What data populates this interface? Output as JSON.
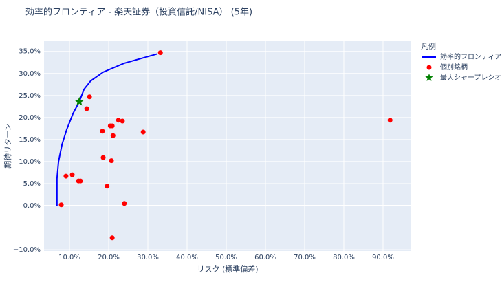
{
  "chart_data": {
    "type": "scatter",
    "title": "効率的フロンティア - 楽天証券（投資信託/NISA） (5年)",
    "x_label": "リスク (標準偏差)",
    "y_label": "期待リターン",
    "legend_title": "凡例",
    "legend": "right",
    "xlim": [
      0.035,
      0.972
    ],
    "ylim": [
      -0.103,
      0.373
    ],
    "xticks": [
      {
        "value": 0.1,
        "label": "10.0%"
      },
      {
        "value": 0.2,
        "label": "20.0%"
      },
      {
        "value": 0.3,
        "label": "30.0%"
      },
      {
        "value": 0.4,
        "label": "40.0%"
      },
      {
        "value": 0.5,
        "label": "50.0%"
      },
      {
        "value": 0.6,
        "label": "60.0%"
      },
      {
        "value": 0.7,
        "label": "70.0%"
      },
      {
        "value": 0.8,
        "label": "80.0%"
      },
      {
        "value": 0.9,
        "label": "90.0%"
      }
    ],
    "yticks": [
      {
        "value": -0.1,
        "label": "−10.0%"
      },
      {
        "value": 0,
        "label": "0.0%"
      },
      {
        "value": 0.05,
        "label": "5.0%"
      },
      {
        "value": 0.1,
        "label": "10.0%"
      },
      {
        "value": 0.15,
        "label": "15.0%"
      },
      {
        "value": 0.2,
        "label": "20.0%"
      },
      {
        "value": 0.25,
        "label": "25.0%"
      },
      {
        "value": 0.3,
        "label": "30.0%"
      },
      {
        "value": 0.35,
        "label": "35.0%"
      }
    ],
    "grid": true,
    "series": [
      {
        "name": "効率的フロンティア",
        "color": "#0000ff",
        "mode": "line",
        "x": [
          0.068,
          0.068,
          0.072,
          0.081,
          0.093,
          0.109,
          0.125,
          0.137,
          0.154,
          0.186,
          0.239,
          0.323
        ],
        "y": [
          0.0,
          0.061,
          0.1,
          0.139,
          0.173,
          0.209,
          0.236,
          0.264,
          0.283,
          0.303,
          0.323,
          0.344
        ]
      },
      {
        "name": "個別銘柄",
        "color": "#ff0000",
        "mode": "markers",
        "x": [
          0.079,
          0.091,
          0.107,
          0.123,
          0.128,
          0.144,
          0.151,
          0.184,
          0.186,
          0.196,
          0.204,
          0.209,
          0.207,
          0.211,
          0.209,
          0.225,
          0.235,
          0.24,
          0.288,
          0.332,
          0.918
        ],
        "y": [
          0.002,
          0.067,
          0.07,
          0.056,
          0.056,
          0.22,
          0.247,
          0.169,
          0.109,
          0.044,
          0.181,
          0.181,
          0.102,
          0.159,
          -0.073,
          0.194,
          0.192,
          0.005,
          0.167,
          0.347,
          0.194
        ]
      },
      {
        "name": "最大シャープレシオ",
        "color": "#008000",
        "mode": "star",
        "x": [
          0.125
        ],
        "y": [
          0.236
        ]
      }
    ]
  }
}
